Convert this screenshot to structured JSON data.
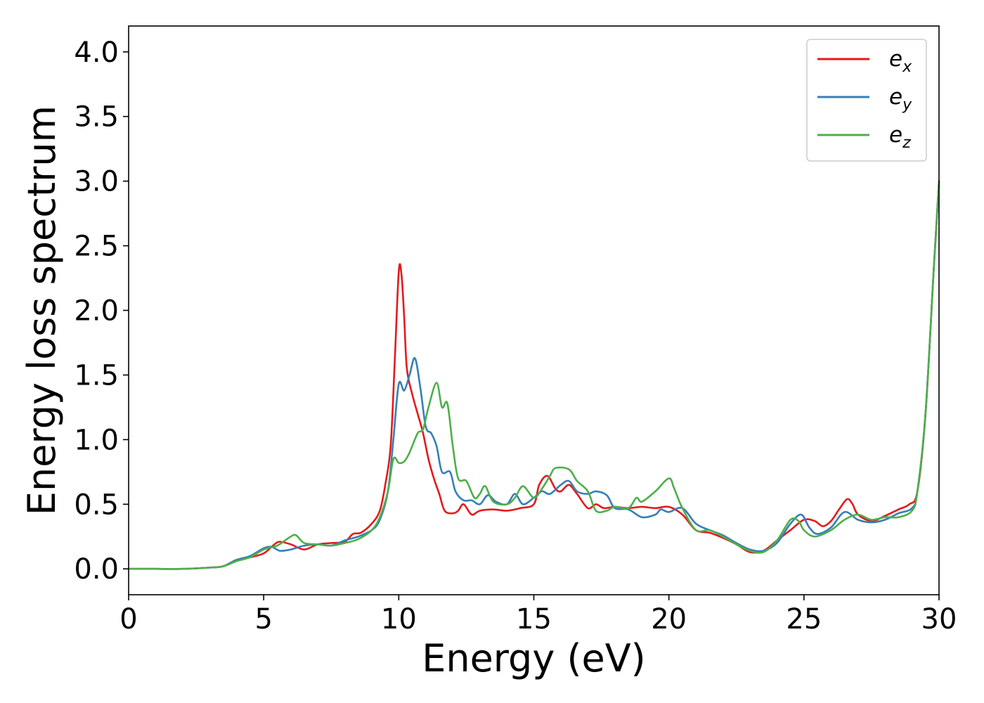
{
  "chart_data": {
    "type": "line",
    "xlabel": "Energy (eV)",
    "ylabel": "Energy loss spectrum",
    "xlim": [
      0,
      30
    ],
    "ylim": [
      -0.2,
      4.2
    ],
    "xticks": [
      0,
      5,
      10,
      15,
      20,
      25,
      30
    ],
    "xtick_labels": [
      "0",
      "5",
      "10",
      "15",
      "20",
      "25",
      "30"
    ],
    "yticks": [
      0.0,
      0.5,
      1.0,
      1.5,
      2.0,
      2.5,
      3.0,
      3.5,
      4.0
    ],
    "ytick_labels": [
      "0.0",
      "0.5",
      "1.0",
      "1.5",
      "2.0",
      "2.5",
      "3.0",
      "3.5",
      "4.0"
    ],
    "grid": false,
    "legend_position": "top-right",
    "series": [
      {
        "name": "e_x",
        "label_main": "e",
        "label_sub": "x",
        "color": "#e41a1c",
        "points": [
          [
            0,
            0
          ],
          [
            1,
            0
          ],
          [
            2,
            0
          ],
          [
            3,
            0.01
          ],
          [
            3.5,
            0.02
          ],
          [
            4,
            0.07
          ],
          [
            4.5,
            0.09
          ],
          [
            5,
            0.12
          ],
          [
            5.4,
            0.19
          ],
          [
            5.6,
            0.21
          ],
          [
            6,
            0.19
          ],
          [
            6.5,
            0.15
          ],
          [
            7,
            0.19
          ],
          [
            7.5,
            0.2
          ],
          [
            8,
            0.21
          ],
          [
            8.3,
            0.27
          ],
          [
            8.6,
            0.28
          ],
          [
            9,
            0.35
          ],
          [
            9.3,
            0.45
          ],
          [
            9.5,
            0.65
          ],
          [
            9.7,
            0.95
          ],
          [
            9.85,
            1.6
          ],
          [
            10,
            2.3
          ],
          [
            10.1,
            2.28
          ],
          [
            10.2,
            1.95
          ],
          [
            10.3,
            1.55
          ],
          [
            10.5,
            1.35
          ],
          [
            10.7,
            1.2
          ],
          [
            10.9,
            1.05
          ],
          [
            11.1,
            0.85
          ],
          [
            11.3,
            0.7
          ],
          [
            11.5,
            0.58
          ],
          [
            11.7,
            0.45
          ],
          [
            12,
            0.43
          ],
          [
            12.2,
            0.45
          ],
          [
            12.4,
            0.5
          ],
          [
            12.7,
            0.42
          ],
          [
            13,
            0.45
          ],
          [
            13.5,
            0.46
          ],
          [
            14,
            0.45
          ],
          [
            14.5,
            0.47
          ],
          [
            15,
            0.5
          ],
          [
            15.2,
            0.65
          ],
          [
            15.5,
            0.72
          ],
          [
            15.8,
            0.62
          ],
          [
            16,
            0.6
          ],
          [
            16.3,
            0.65
          ],
          [
            16.6,
            0.58
          ],
          [
            17,
            0.47
          ],
          [
            17.3,
            0.5
          ],
          [
            17.6,
            0.47
          ],
          [
            18,
            0.48
          ],
          [
            18.5,
            0.47
          ],
          [
            19,
            0.48
          ],
          [
            19.5,
            0.47
          ],
          [
            20,
            0.48
          ],
          [
            20.5,
            0.42
          ],
          [
            21,
            0.3
          ],
          [
            21.5,
            0.28
          ],
          [
            22,
            0.24
          ],
          [
            22.5,
            0.19
          ],
          [
            23,
            0.13
          ],
          [
            23.5,
            0.14
          ],
          [
            24,
            0.22
          ],
          [
            24.5,
            0.3
          ],
          [
            25,
            0.38
          ],
          [
            25.4,
            0.37
          ],
          [
            25.7,
            0.33
          ],
          [
            26,
            0.37
          ],
          [
            26.3,
            0.46
          ],
          [
            26.6,
            0.54
          ],
          [
            26.8,
            0.5
          ],
          [
            27,
            0.42
          ],
          [
            27.5,
            0.37
          ],
          [
            28,
            0.41
          ],
          [
            28.5,
            0.46
          ],
          [
            28.9,
            0.5
          ],
          [
            29.2,
            0.6
          ],
          [
            29.5,
            1.2
          ],
          [
            29.8,
            2.3
          ],
          [
            30,
            3.0
          ]
        ]
      },
      {
        "name": "e_y",
        "label_main": "e",
        "label_sub": "y",
        "color": "#377eb8",
        "points": [
          [
            0,
            0
          ],
          [
            1,
            0
          ],
          [
            2,
            0
          ],
          [
            3,
            0.01
          ],
          [
            3.5,
            0.02
          ],
          [
            4,
            0.07
          ],
          [
            4.5,
            0.1
          ],
          [
            5,
            0.16
          ],
          [
            5.3,
            0.17
          ],
          [
            5.6,
            0.14
          ],
          [
            6,
            0.15
          ],
          [
            6.5,
            0.18
          ],
          [
            7,
            0.19
          ],
          [
            7.5,
            0.18
          ],
          [
            8,
            0.22
          ],
          [
            8.5,
            0.25
          ],
          [
            9,
            0.3
          ],
          [
            9.3,
            0.38
          ],
          [
            9.6,
            0.6
          ],
          [
            9.8,
            1.0
          ],
          [
            10,
            1.43
          ],
          [
            10.2,
            1.38
          ],
          [
            10.4,
            1.5
          ],
          [
            10.6,
            1.63
          ],
          [
            10.8,
            1.4
          ],
          [
            11,
            1.1
          ],
          [
            11.2,
            1.05
          ],
          [
            11.4,
            0.95
          ],
          [
            11.6,
            0.75
          ],
          [
            11.9,
            0.75
          ],
          [
            12.1,
            0.6
          ],
          [
            12.4,
            0.53
          ],
          [
            12.7,
            0.53
          ],
          [
            13,
            0.5
          ],
          [
            13.3,
            0.57
          ],
          [
            13.6,
            0.52
          ],
          [
            14,
            0.5
          ],
          [
            14.3,
            0.58
          ],
          [
            14.6,
            0.5
          ],
          [
            15,
            0.55
          ],
          [
            15.3,
            0.6
          ],
          [
            15.6,
            0.58
          ],
          [
            16,
            0.65
          ],
          [
            16.3,
            0.68
          ],
          [
            16.6,
            0.6
          ],
          [
            17,
            0.58
          ],
          [
            17.3,
            0.6
          ],
          [
            17.7,
            0.57
          ],
          [
            18,
            0.47
          ],
          [
            18.5,
            0.46
          ],
          [
            19,
            0.4
          ],
          [
            19.5,
            0.42
          ],
          [
            19.7,
            0.46
          ],
          [
            20,
            0.44
          ],
          [
            20.5,
            0.47
          ],
          [
            21,
            0.35
          ],
          [
            21.5,
            0.3
          ],
          [
            22,
            0.26
          ],
          [
            22.5,
            0.2
          ],
          [
            23,
            0.15
          ],
          [
            23.5,
            0.14
          ],
          [
            24,
            0.2
          ],
          [
            24.5,
            0.35
          ],
          [
            24.9,
            0.42
          ],
          [
            25.2,
            0.32
          ],
          [
            25.5,
            0.27
          ],
          [
            26,
            0.32
          ],
          [
            26.5,
            0.44
          ],
          [
            27,
            0.38
          ],
          [
            27.5,
            0.36
          ],
          [
            28,
            0.38
          ],
          [
            28.5,
            0.43
          ],
          [
            29,
            0.47
          ],
          [
            29.2,
            0.6
          ],
          [
            29.5,
            1.2
          ],
          [
            29.8,
            2.3
          ],
          [
            30,
            3.0
          ]
        ]
      },
      {
        "name": "e_z",
        "label_main": "e",
        "label_sub": "z",
        "color": "#4daf4a",
        "points": [
          [
            0,
            0
          ],
          [
            1,
            0
          ],
          [
            2,
            0
          ],
          [
            3,
            0.01
          ],
          [
            3.5,
            0.02
          ],
          [
            4,
            0.06
          ],
          [
            4.5,
            0.09
          ],
          [
            5,
            0.15
          ],
          [
            5.5,
            0.18
          ],
          [
            6,
            0.25
          ],
          [
            6.2,
            0.26
          ],
          [
            6.5,
            0.2
          ],
          [
            7,
            0.19
          ],
          [
            7.5,
            0.18
          ],
          [
            8,
            0.2
          ],
          [
            8.5,
            0.23
          ],
          [
            9,
            0.3
          ],
          [
            9.3,
            0.4
          ],
          [
            9.6,
            0.6
          ],
          [
            9.8,
            0.85
          ],
          [
            10,
            0.82
          ],
          [
            10.2,
            0.83
          ],
          [
            10.4,
            0.9
          ],
          [
            10.7,
            1.05
          ],
          [
            10.9,
            1.08
          ],
          [
            11.1,
            1.25
          ],
          [
            11.4,
            1.44
          ],
          [
            11.6,
            1.25
          ],
          [
            11.8,
            1.28
          ],
          [
            12,
            0.95
          ],
          [
            12.2,
            0.7
          ],
          [
            12.5,
            0.68
          ],
          [
            12.8,
            0.55
          ],
          [
            13,
            0.58
          ],
          [
            13.2,
            0.64
          ],
          [
            13.5,
            0.52
          ],
          [
            14,
            0.5
          ],
          [
            14.3,
            0.55
          ],
          [
            14.6,
            0.64
          ],
          [
            15,
            0.55
          ],
          [
            15.3,
            0.62
          ],
          [
            15.6,
            0.72
          ],
          [
            15.8,
            0.78
          ],
          [
            16.3,
            0.77
          ],
          [
            16.6,
            0.68
          ],
          [
            17,
            0.6
          ],
          [
            17.3,
            0.45
          ],
          [
            17.7,
            0.45
          ],
          [
            18,
            0.48
          ],
          [
            18.5,
            0.47
          ],
          [
            18.8,
            0.55
          ],
          [
            19,
            0.52
          ],
          [
            19.5,
            0.6
          ],
          [
            20,
            0.7
          ],
          [
            20.2,
            0.62
          ],
          [
            20.5,
            0.47
          ],
          [
            21,
            0.3
          ],
          [
            21.5,
            0.3
          ],
          [
            22,
            0.25
          ],
          [
            22.5,
            0.19
          ],
          [
            23,
            0.14
          ],
          [
            23.5,
            0.13
          ],
          [
            24,
            0.22
          ],
          [
            24.5,
            0.38
          ],
          [
            24.8,
            0.37
          ],
          [
            25,
            0.3
          ],
          [
            25.4,
            0.25
          ],
          [
            26,
            0.3
          ],
          [
            26.5,
            0.38
          ],
          [
            27,
            0.42
          ],
          [
            27.5,
            0.38
          ],
          [
            28,
            0.4
          ],
          [
            28.5,
            0.4
          ],
          [
            29,
            0.45
          ],
          [
            29.2,
            0.6
          ],
          [
            29.5,
            1.2
          ],
          [
            29.8,
            2.3
          ],
          [
            30,
            3.0
          ]
        ]
      }
    ]
  }
}
